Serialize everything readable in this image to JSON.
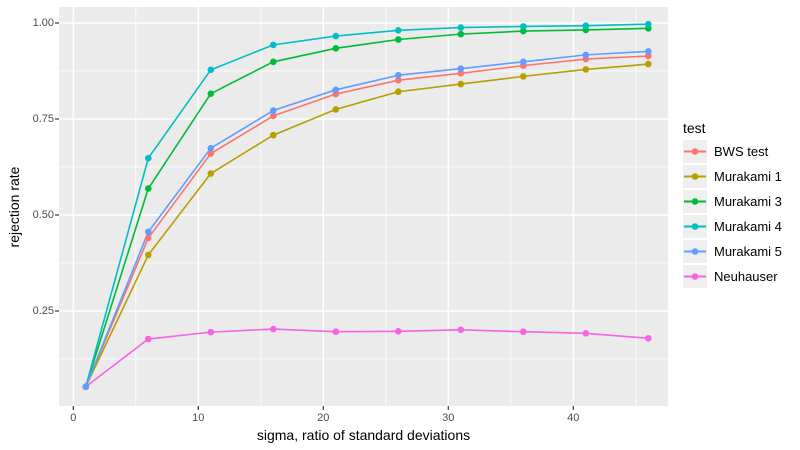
{
  "figure": {
    "background": "#FFFFFF",
    "panel_bg": "#EBEBEB",
    "grid_color": "#FFFFFF",
    "tick_mark_color": "#333333",
    "axis_text_color": "#4D4D4D",
    "legend_key_bg": "#EFEFEF"
  },
  "chart_data": {
    "type": "line",
    "title": "",
    "xlabel": "sigma, ratio of standard deviations",
    "ylabel": "rejection rate",
    "x": [
      1,
      6,
      11,
      16,
      21,
      26,
      31,
      36,
      41,
      46
    ],
    "x_ticks": [
      0,
      10,
      20,
      30,
      40
    ],
    "x_tick_labels": [
      "0",
      "10",
      "20",
      "30",
      "40"
    ],
    "x_minor_ticks": [
      5,
      15,
      25,
      35,
      45
    ],
    "y_ticks": [
      0.25,
      0.5,
      0.75,
      1.0
    ],
    "y_tick_labels": [
      "0.25",
      "0.50",
      "0.75",
      "1.00"
    ],
    "y_minor_ticks": [
      0.125,
      0.375,
      0.625,
      0.875
    ],
    "xlim": [
      -1.15,
      47.6
    ],
    "ylim": [
      0.003,
      1.042
    ],
    "grid": "major and minor white gridlines on gray panel",
    "legend_position": "right",
    "legend": {
      "title": "test"
    },
    "series": [
      {
        "name": "BWS test",
        "color": "#F8766D",
        "values": [
          0.053,
          0.44,
          0.66,
          0.758,
          0.815,
          0.851,
          0.869,
          0.889,
          0.906,
          0.914
        ]
      },
      {
        "name": "Murakami 1",
        "color": "#B79F00",
        "values": [
          0.053,
          0.396,
          0.608,
          0.708,
          0.775,
          0.821,
          0.841,
          0.861,
          0.879,
          0.893
        ]
      },
      {
        "name": "Murakami 3",
        "color": "#00BA38",
        "values": [
          0.053,
          0.569,
          0.816,
          0.899,
          0.934,
          0.957,
          0.971,
          0.979,
          0.982,
          0.986
        ]
      },
      {
        "name": "Murakami 4",
        "color": "#00BFC4",
        "values": [
          0.053,
          0.648,
          0.878,
          0.943,
          0.966,
          0.981,
          0.988,
          0.991,
          0.993,
          0.997
        ]
      },
      {
        "name": "Murakami 5",
        "color": "#619CFF",
        "values": [
          0.053,
          0.456,
          0.674,
          0.772,
          0.826,
          0.864,
          0.881,
          0.899,
          0.917,
          0.926
        ]
      },
      {
        "name": "Neuhauser",
        "color": "#F564E3",
        "values": [
          0.053,
          0.177,
          0.195,
          0.203,
          0.196,
          0.197,
          0.201,
          0.196,
          0.192,
          0.179
        ]
      }
    ]
  }
}
